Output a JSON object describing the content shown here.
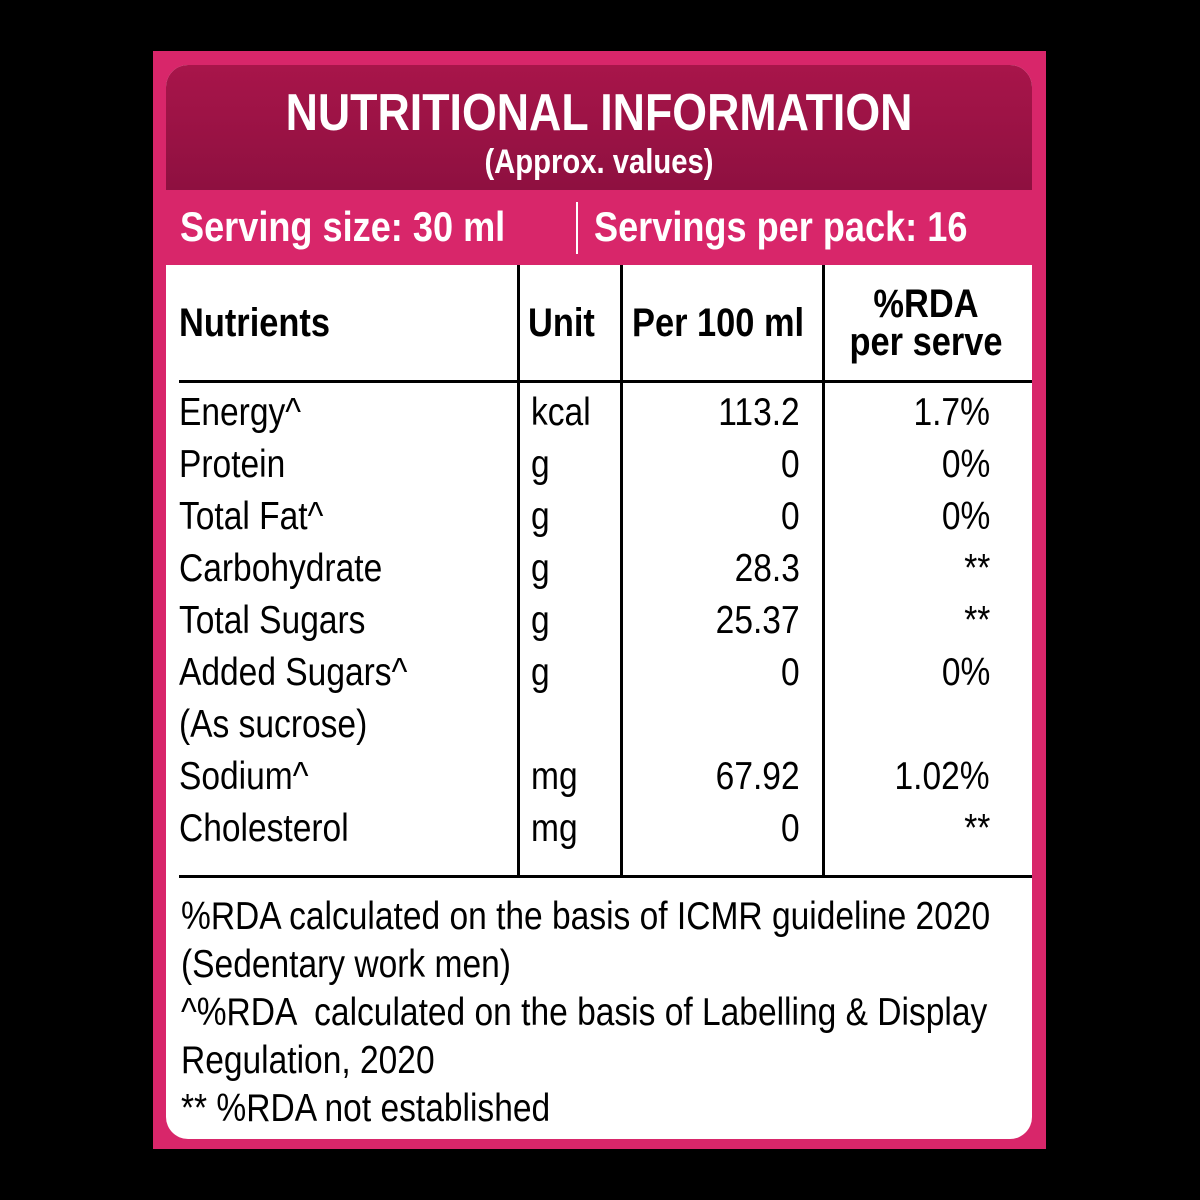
{
  "label": {
    "title": "NUTRITIONAL INFORMATION",
    "subtitle": "(Approx. values)",
    "serving_size": "Serving size: 30 ml",
    "servings_per_pack": "Servings per pack: 16"
  },
  "table": {
    "headers": {
      "nutrients": "Nutrients",
      "unit": "Unit",
      "per_100ml": "Per 100 ml",
      "rda_line1": "%RDA",
      "rda_line2": "per serve"
    },
    "rows": [
      {
        "name": "Energy^",
        "unit": "kcal",
        "per100": "113.2",
        "rda": "1.7%"
      },
      {
        "name": "Protein",
        "unit": "g",
        "per100": "0",
        "rda": "0%"
      },
      {
        "name": "Total Fat^",
        "unit": "g",
        "per100": "0",
        "rda": "0%"
      },
      {
        "name": "Carbohydrate",
        "unit": "g",
        "per100": "28.3",
        "rda": "**"
      },
      {
        "name": "Total Sugars",
        "unit": "g",
        "per100": "25.37",
        "rda": "**"
      },
      {
        "name": "Added Sugars^",
        "unit": "g",
        "per100": "0",
        "rda": "0%"
      },
      {
        "name": "(As sucrose)",
        "unit": "",
        "per100": "",
        "rda": ""
      },
      {
        "name": "Sodium^",
        "unit": "mg",
        "per100": "67.92",
        "rda": "1.02%"
      },
      {
        "name": "Cholesterol",
        "unit": "mg",
        "per100": "0",
        "rda": "**"
      }
    ]
  },
  "footnotes": [
    "%RDA calculated on the basis of ICMR guideline 2020",
    "(Sedentary work men)",
    "^%RDA  calculated on the basis of Labelling & Display",
    "Regulation, 2020",
    "** %RDA not established"
  ],
  "colors": {
    "frame_pink": "#d8266a",
    "title_maroon": "#9e1346",
    "background": "#000000"
  }
}
